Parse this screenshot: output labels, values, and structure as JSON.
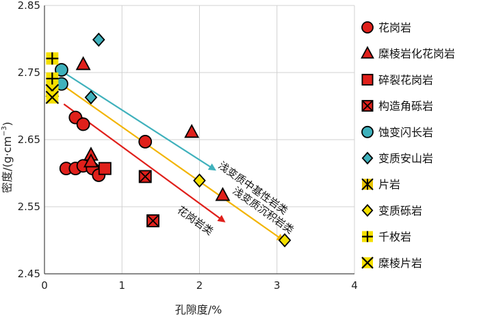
{
  "chart_data": {
    "type": "scatter",
    "xlabel": "孔隙度/%",
    "ylabel_main": "密度/(g·cm",
    "ylabel_sup": "−3",
    "ylabel_close": ")",
    "xlim": [
      0,
      4
    ],
    "ylim": [
      2.45,
      2.85
    ],
    "xticks": [
      "0",
      "1",
      "2",
      "3",
      "4"
    ],
    "yticks": [
      "2.45",
      "2.55",
      "2.65",
      "2.75",
      "2.85"
    ],
    "grid": true,
    "legend_position": "right",
    "series": [
      {
        "name": "花岗岩",
        "marker": "circle",
        "color": "#e0201b",
        "points": [
          [
            0.28,
            2.607
          ],
          [
            0.4,
            2.607
          ],
          [
            0.5,
            2.611
          ],
          [
            0.62,
            2.607
          ],
          [
            0.7,
            2.597
          ],
          [
            0.4,
            2.683
          ],
          [
            0.5,
            2.673
          ],
          [
            1.3,
            2.647
          ]
        ]
      },
      {
        "name": "糜棱岩化花岗岩",
        "marker": "triangle",
        "color": "#e0201b",
        "points": [
          [
            0.5,
            2.762
          ],
          [
            0.6,
            2.627
          ],
          [
            0.6,
            2.617
          ],
          [
            1.9,
            2.661
          ],
          [
            2.3,
            2.567
          ]
        ]
      },
      {
        "name": "碎裂花岗岩",
        "marker": "square",
        "color": "#e0201b",
        "points": [
          [
            0.78,
            2.607
          ]
        ]
      },
      {
        "name": "构造角砾岩",
        "marker": "square-x",
        "color": "#e0201b",
        "points": [
          [
            1.3,
            2.595
          ],
          [
            1.4,
            2.529
          ]
        ]
      },
      {
        "name": "蚀变闪长岩",
        "marker": "circle",
        "color": "#3fb1bc",
        "points": [
          [
            0.22,
            2.754
          ],
          [
            0.22,
            2.733
          ]
        ]
      },
      {
        "name": "变质安山岩",
        "marker": "diamond",
        "color": "#3fb1bc",
        "points": [
          [
            0.7,
            2.799
          ],
          [
            0.6,
            2.713
          ]
        ]
      },
      {
        "name": "片岩",
        "marker": "asterisk",
        "color": "#e8c400",
        "points": [
          [
            0.1,
            2.723
          ]
        ]
      },
      {
        "name": "变质砾岩",
        "marker": "diamond",
        "color": "#f5e000",
        "points": [
          [
            2.0,
            2.589
          ],
          [
            3.1,
            2.5
          ]
        ]
      },
      {
        "name": "千枚岩",
        "marker": "plus",
        "color": "#f5e000",
        "points": [
          [
            0.1,
            2.771
          ],
          [
            0.1,
            2.741
          ]
        ]
      },
      {
        "name": "糜棱片岩",
        "marker": "x",
        "color": "#f5e000",
        "points": [
          [
            0.1,
            2.723
          ],
          [
            0.1,
            2.713
          ]
        ]
      }
    ],
    "trend_arrows": [
      {
        "label": "浅变质中基性岩类",
        "color": "#3fb1bc",
        "from": [
          0.25,
          2.75
        ],
        "to": [
          2.2,
          2.605
        ]
      },
      {
        "label": "浅变质沉积岩类",
        "color": "#f2b400",
        "from": [
          0.25,
          2.73
        ],
        "to": [
          3.08,
          2.5
        ]
      },
      {
        "label": "花岗岩类",
        "color": "#e0201b",
        "from": [
          0.25,
          2.703
        ],
        "to": [
          2.32,
          2.528
        ]
      }
    ]
  }
}
